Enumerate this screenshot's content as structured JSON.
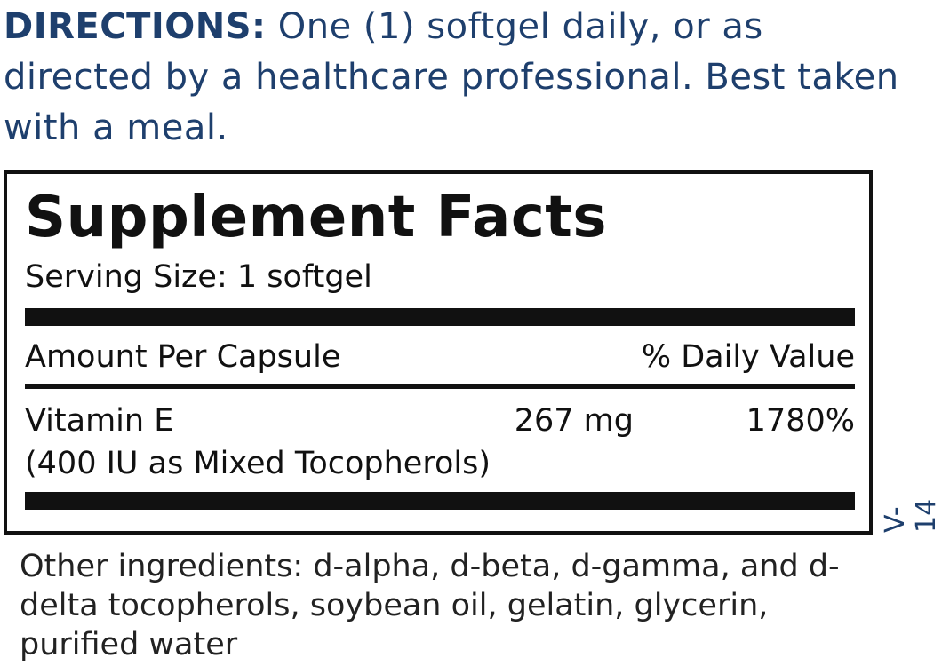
{
  "directions": {
    "label": "DIRECTIONS:",
    "text": "One (1) softgel daily, or as directed by a healthcare professional. Best taken with a meal."
  },
  "facts": {
    "title": "Supplement Facts",
    "serving_size": "Serving Size: 1 softgel",
    "amount_header": "Amount Per Capsule",
    "dv_header": "% Daily Value",
    "rows": [
      {
        "name": "Vitamin E",
        "amount": "267 mg",
        "dv": "1780%",
        "note": "(400 IU as Mixed Tocopherols)"
      }
    ]
  },
  "code": "V-14",
  "other_ingredients": "Other ingredients: d-alpha, d-beta, d-gamma, and d-delta tocopherols, soybean oil, gelatin, glycerin, purified water",
  "colors": {
    "directions": "#1e3f6d",
    "text": "#111111"
  }
}
